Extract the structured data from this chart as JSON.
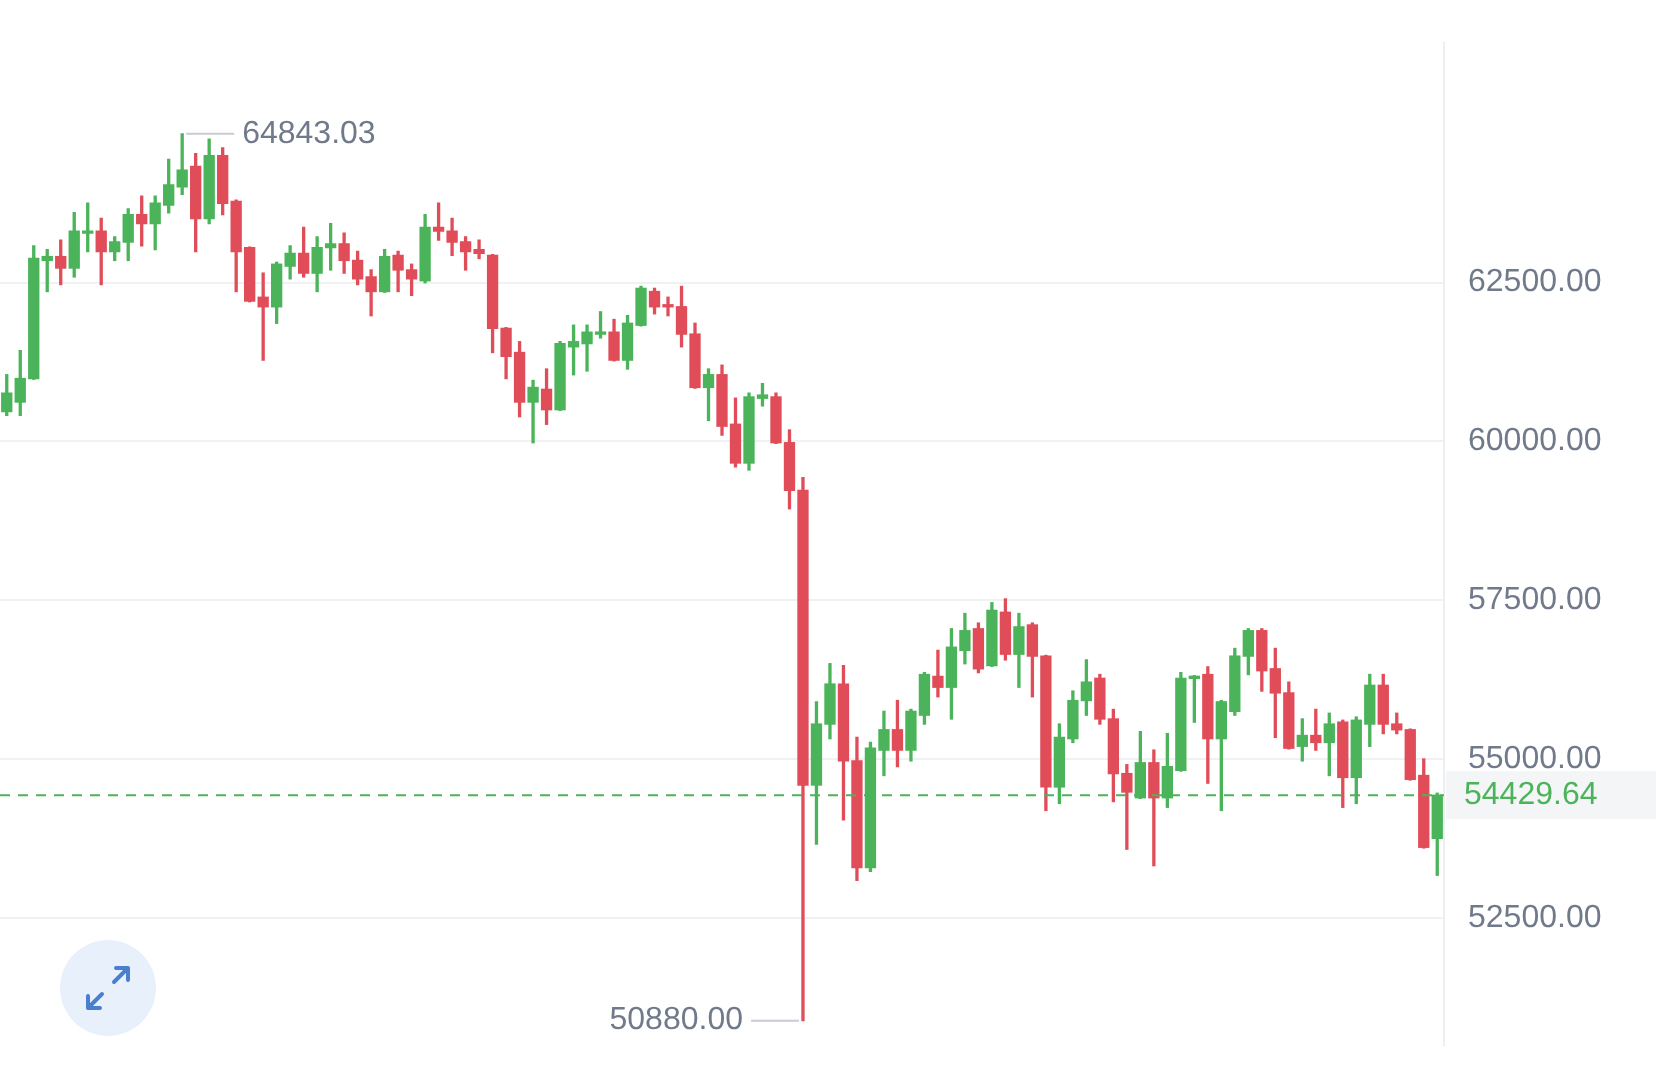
{
  "chart_data": {
    "type": "candlestick",
    "categories": [
      null,
      null,
      null,
      null,
      null,
      null,
      null,
      null,
      null,
      null,
      null,
      null,
      null,
      null,
      null,
      null,
      null,
      null,
      null,
      null,
      null,
      null,
      null,
      null,
      null,
      null,
      null,
      null,
      null,
      null,
      null,
      null,
      null,
      null,
      null,
      null,
      null,
      null,
      null,
      null,
      null,
      null,
      null,
      null,
      null,
      null,
      null,
      null,
      null,
      null,
      null,
      null,
      null,
      null,
      null,
      null,
      null,
      null,
      null,
      null,
      null,
      null,
      null,
      null,
      null,
      null,
      null,
      null,
      null,
      null,
      null,
      null,
      null,
      null,
      null,
      null,
      null,
      null,
      null,
      null,
      null,
      null,
      null,
      null,
      null,
      null,
      null,
      null,
      null,
      null,
      null,
      null,
      null,
      null,
      null,
      null,
      null,
      null,
      null,
      null,
      null,
      null,
      null,
      null,
      null,
      null,
      null
    ],
    "ohlc": [
      [
        60470,
        61050,
        60410,
        60760
      ],
      [
        60620,
        61430,
        60410,
        60990
      ],
      [
        60990,
        63080,
        60980,
        62880
      ],
      [
        62850,
        63020,
        62360,
        62910
      ],
      [
        62910,
        63170,
        62470,
        62730
      ],
      [
        62730,
        63600,
        62590,
        63310
      ],
      [
        63280,
        63750,
        62990,
        63310
      ],
      [
        63310,
        63510,
        62470,
        62990
      ],
      [
        62990,
        63220,
        62850,
        63140
      ],
      [
        63140,
        63660,
        62850,
        63570
      ],
      [
        63570,
        63860,
        63080,
        63430
      ],
      [
        63430,
        63860,
        63020,
        63750
      ],
      [
        63720,
        64440,
        63600,
        64040
      ],
      [
        64010,
        64843.03,
        63890,
        64270
      ],
      [
        64330,
        64530,
        62990,
        63510
      ],
      [
        63510,
        64760,
        63430,
        64500
      ],
      [
        64500,
        64620,
        63570,
        63750
      ],
      [
        63780,
        63800,
        62360,
        62990
      ],
      [
        63050,
        63060,
        62200,
        62210
      ],
      [
        62270,
        62650,
        61280,
        62120
      ],
      [
        62120,
        62820,
        61860,
        62790
      ],
      [
        62760,
        63080,
        62560,
        62960
      ],
      [
        62960,
        63370,
        62590,
        62650
      ],
      [
        62650,
        63220,
        62360,
        63050
      ],
      [
        63050,
        63430,
        62700,
        63110
      ],
      [
        63110,
        63280,
        62650,
        62850
      ],
      [
        62850,
        62990,
        62470,
        62560
      ],
      [
        62590,
        62700,
        61980,
        62360
      ],
      [
        62360,
        63020,
        62350,
        62910
      ],
      [
        62930,
        62990,
        62360,
        62700
      ],
      [
        62700,
        62790,
        62300,
        62560
      ],
      [
        62530,
        63570,
        62500,
        63370
      ],
      [
        63370,
        63750,
        63170,
        63310
      ],
      [
        63310,
        63510,
        62930,
        63140
      ],
      [
        63140,
        63220,
        62700,
        62990
      ],
      [
        63020,
        63170,
        62880,
        62960
      ],
      [
        62930,
        62940,
        61400,
        61780
      ],
      [
        61780,
        61790,
        60990,
        61340
      ],
      [
        61400,
        61570,
        60390,
        60620
      ],
      [
        60620,
        60960,
        59980,
        60850
      ],
      [
        60820,
        61140,
        60270,
        60500
      ],
      [
        60500,
        61570,
        60490,
        61540
      ],
      [
        61490,
        61830,
        61050,
        61570
      ],
      [
        61540,
        61830,
        61110,
        61720
      ],
      [
        61690,
        62040,
        61630,
        61720
      ],
      [
        61720,
        61920,
        61270,
        61280
      ],
      [
        61280,
        61980,
        61140,
        61860
      ],
      [
        61830,
        62440,
        61820,
        62410
      ],
      [
        62360,
        62410,
        62010,
        62120
      ],
      [
        62150,
        62270,
        61980,
        62120
      ],
      [
        62120,
        62440,
        61490,
        61690
      ],
      [
        61690,
        61860,
        60840,
        60850
      ],
      [
        60850,
        61140,
        60330,
        61050
      ],
      [
        61050,
        61200,
        60100,
        60240
      ],
      [
        60270,
        60680,
        59600,
        59660
      ],
      [
        59660,
        60760,
        59550,
        60700
      ],
      [
        60680,
        60910,
        60560,
        60730
      ],
      [
        60700,
        60760,
        59970,
        59980
      ],
      [
        59980,
        60180,
        58940,
        59230
      ],
      [
        59230,
        59430,
        50880,
        54590
      ],
      [
        54590,
        55900,
        53660,
        55550
      ],
      [
        55550,
        56500,
        55320,
        56180
      ],
      [
        56180,
        56470,
        54040,
        54970
      ],
      [
        54970,
        55340,
        53090,
        53290
      ],
      [
        53290,
        55260,
        53230,
        55170
      ],
      [
        55140,
        55750,
        54740,
        55460
      ],
      [
        55460,
        55920,
        54880,
        55140
      ],
      [
        55140,
        55780,
        54970,
        55750
      ],
      [
        55690,
        56360,
        55550,
        56330
      ],
      [
        56300,
        56710,
        55980,
        56130
      ],
      [
        56130,
        57050,
        55630,
        56760
      ],
      [
        56710,
        57290,
        56500,
        57020
      ],
      [
        57050,
        57140,
        56360,
        56420
      ],
      [
        56470,
        57460,
        56460,
        57340
      ],
      [
        57310,
        57520,
        56560,
        56650
      ],
      [
        56650,
        57290,
        56130,
        57080
      ],
      [
        57110,
        57140,
        55980,
        56620
      ],
      [
        56620,
        56630,
        54190,
        54560
      ],
      [
        54560,
        55550,
        54300,
        55340
      ],
      [
        55320,
        56070,
        55260,
        55920
      ],
      [
        55920,
        56560,
        55690,
        56210
      ],
      [
        56270,
        56330,
        55550,
        55630
      ],
      [
        55630,
        55780,
        54330,
        54770
      ],
      [
        54770,
        54910,
        53580,
        54480
      ],
      [
        54390,
        55430,
        54380,
        54940
      ],
      [
        54940,
        55140,
        53320,
        54390
      ],
      [
        54390,
        55400,
        54240,
        54880
      ],
      [
        54820,
        56360,
        54810,
        56270
      ],
      [
        56270,
        56310,
        55580,
        56300
      ],
      [
        56330,
        56450,
        54620,
        55320
      ],
      [
        55320,
        55920,
        54190,
        55900
      ],
      [
        55750,
        56740,
        55690,
        56620
      ],
      [
        56620,
        57050,
        56330,
        57020
      ],
      [
        57020,
        57050,
        56070,
        56390
      ],
      [
        56420,
        56740,
        55340,
        56040
      ],
      [
        56040,
        56210,
        55160,
        55170
      ],
      [
        55200,
        55630,
        54970,
        55370
      ],
      [
        55370,
        55780,
        55140,
        55260
      ],
      [
        55260,
        55720,
        54740,
        55550
      ],
      [
        55580,
        55610,
        54240,
        54710
      ],
      [
        54710,
        55660,
        54300,
        55610
      ],
      [
        55550,
        56330,
        55200,
        56160
      ],
      [
        56160,
        56330,
        55400,
        55550
      ],
      [
        55550,
        55720,
        55400,
        55460
      ],
      [
        55460,
        55470,
        54670,
        54680
      ],
      [
        54740,
        55000,
        53600,
        53610
      ],
      [
        53750,
        54460,
        53170,
        54429.64
      ]
    ],
    "colors": [
      "#4bb45a",
      "#4bb45a",
      "#4bb45a",
      "#4bb45a",
      "#e04d59",
      "#4bb45a",
      "#4bb45a",
      "#e04d59",
      "#4bb45a",
      "#4bb45a",
      "#e04d59",
      "#4bb45a",
      "#4bb45a",
      "#4bb45a",
      "#e04d59",
      "#4bb45a",
      "#e04d59",
      "#e04d59",
      "#e04d59",
      "#e04d59",
      "#4bb45a",
      "#4bb45a",
      "#e04d59",
      "#4bb45a",
      "#4bb45a",
      "#e04d59",
      "#e04d59",
      "#e04d59",
      "#4bb45a",
      "#e04d59",
      "#e04d59",
      "#4bb45a",
      "#e04d59",
      "#e04d59",
      "#e04d59",
      "#e04d59",
      "#e04d59",
      "#e04d59",
      "#e04d59",
      "#4bb45a",
      "#e04d59",
      "#4bb45a",
      "#4bb45a",
      "#4bb45a",
      "#4bb45a",
      "#e04d59",
      "#4bb45a",
      "#4bb45a",
      "#e04d59",
      "#e04d59",
      "#e04d59",
      "#e04d59",
      "#4bb45a",
      "#e04d59",
      "#e04d59",
      "#4bb45a",
      "#4bb45a",
      "#e04d59",
      "#e04d59",
      "#e04d59",
      "#4bb45a",
      "#4bb45a",
      "#e04d59",
      "#e04d59",
      "#4bb45a",
      "#4bb45a",
      "#e04d59",
      "#4bb45a",
      "#4bb45a",
      "#e04d59",
      "#4bb45a",
      "#4bb45a",
      "#e04d59",
      "#4bb45a",
      "#e04d59",
      "#4bb45a",
      "#e04d59",
      "#e04d59",
      "#4bb45a",
      "#4bb45a",
      "#4bb45a",
      "#e04d59",
      "#e04d59",
      "#e04d59",
      "#4bb45a",
      "#e04d59",
      "#4bb45a",
      "#4bb45a",
      "#4bb45a",
      "#e04d59",
      "#4bb45a",
      "#4bb45a",
      "#4bb45a",
      "#e04d59",
      "#e04d59",
      "#e04d59",
      "#4bb45a",
      "#e04d59",
      "#4bb45a",
      "#e04d59",
      "#4bb45a",
      "#4bb45a",
      "#e04d59",
      "#e04d59",
      "#e04d59",
      "#e04d59",
      "#4bb45a"
    ],
    "ylim": [
      50500,
      66270
    ],
    "yticks": [
      {
        "value": 52500,
        "label": "52500.00"
      },
      {
        "value": 55000,
        "label": "55000.00"
      },
      {
        "value": 57500,
        "label": "57500.00"
      },
      {
        "value": 60000,
        "label": "60000.00"
      },
      {
        "value": 62500,
        "label": "62500.00"
      }
    ],
    "grid": "y",
    "legend": false,
    "tick_labels": "y",
    "ref_lines": [
      {
        "axis": "y",
        "value": 54429.64,
        "label": "54429.64",
        "color": "#4bb45a",
        "line_style": "dashed"
      }
    ],
    "annotations": [
      "64843.03",
      "50880.00"
    ]
  }
}
